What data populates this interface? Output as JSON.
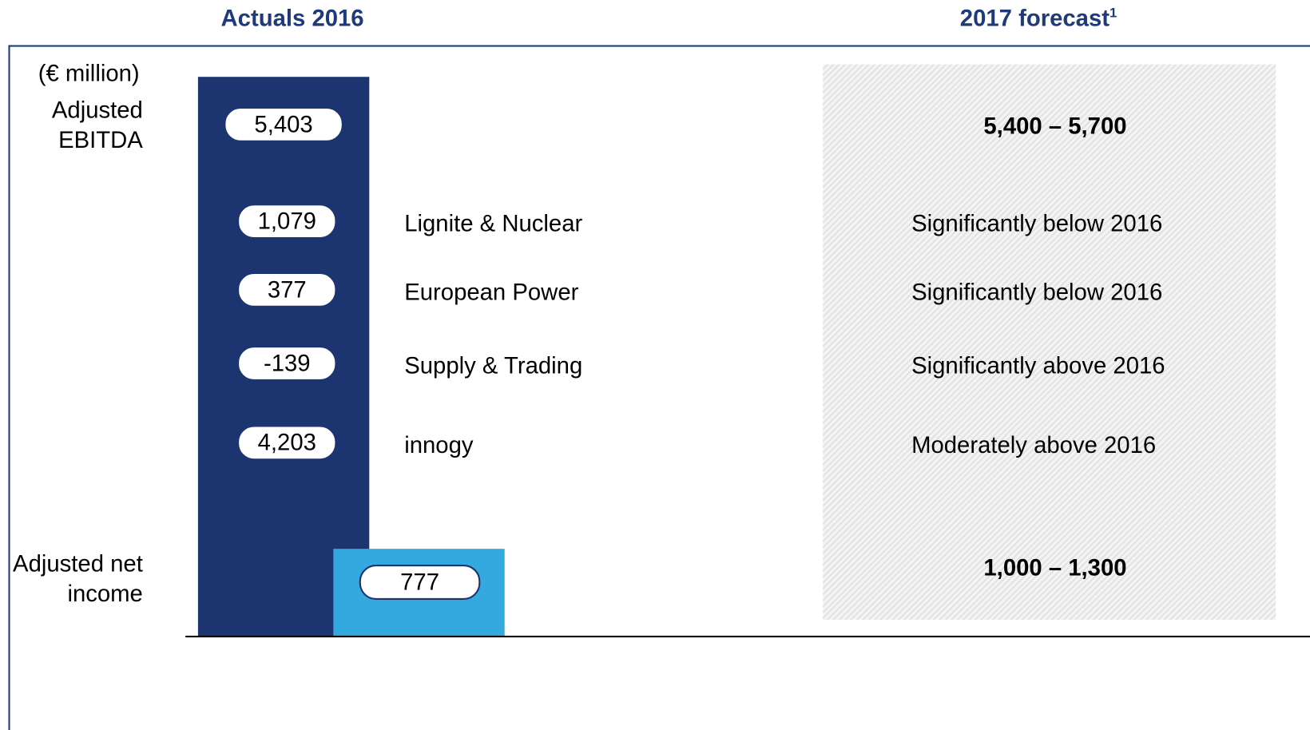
{
  "header": {
    "left": "Actuals 2016",
    "right": "2017 forecast",
    "right_footnote": "1"
  },
  "unit": "(€ million)",
  "ebitda": {
    "label": "Adjusted EBITDA",
    "actual": "5,403",
    "forecast": "5,400 – 5,700"
  },
  "segments": [
    {
      "actual": "1,079",
      "name": "Lignite & Nuclear",
      "forecast": "Significantly below 2016"
    },
    {
      "actual": "377",
      "name": "European Power",
      "forecast": "Significantly below 2016"
    },
    {
      "actual": "-139",
      "name": "Supply & Trading",
      "forecast": "Significantly above 2016"
    },
    {
      "actual": "4,203",
      "name": "innogy",
      "forecast": "Moderately above 2016"
    }
  ],
  "net_income": {
    "label": "Adjusted net income",
    "actual": "777",
    "forecast": "1,000 – 1,300"
  }
}
